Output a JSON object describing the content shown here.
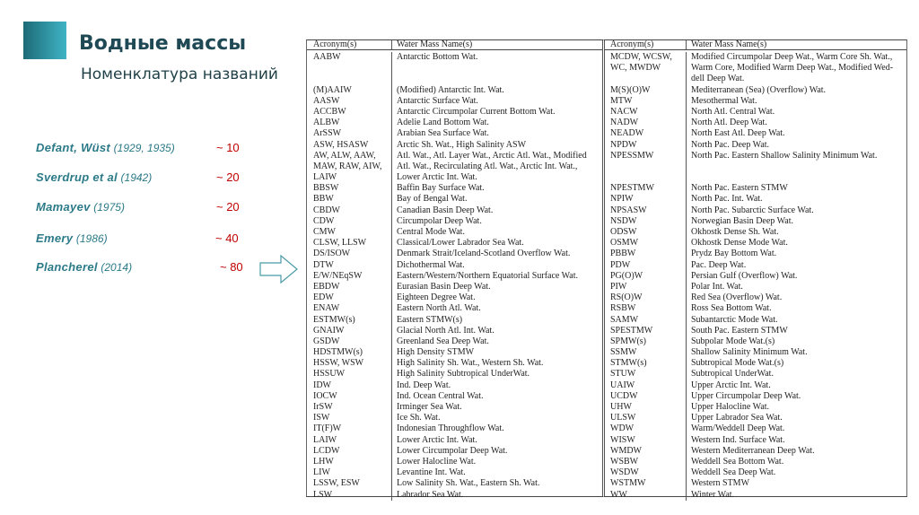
{
  "slide": {
    "title": "Водные массы",
    "subtitle": "Номенклатура названий",
    "accent_color": "#2b8a98",
    "authors": [
      {
        "name": "Defant, Wüst",
        "years": "(1929, 1935)",
        "count": "~ 10"
      },
      {
        "name": "Sverdrup et al",
        "years": "(1942)",
        "count": "~ 20"
      },
      {
        "name": "Mamayev",
        "years": "(1975)",
        "count": "~ 20"
      },
      {
        "name": "Emery",
        "years": "(1986)",
        "count": "~ 40"
      },
      {
        "name": "Plancherel",
        "years": "(2014)",
        "count": "~ 80"
      }
    ],
    "arrow_icon": "right-arrow-outline"
  },
  "table": {
    "headers": [
      "Acronym(s)",
      "Water Mass Name(s)"
    ],
    "left_rows": [
      [
        "AABW",
        "Antarctic Bottom Wat."
      ],
      [
        "",
        ""
      ],
      [
        "",
        ""
      ],
      [
        "(M)AAIW",
        "(Modified) Antarctic Int. Wat."
      ],
      [
        "AASW",
        "Antarctic Surface Wat."
      ],
      [
        "ACCBW",
        "Antarctic Circumpolar Current Bottom Wat."
      ],
      [
        "ALBW",
        "Adelie Land Bottom Wat."
      ],
      [
        "ArSSW",
        "Arabian Sea Surface Wat."
      ],
      [
        "ASW, HSASW",
        "Arctic Sh. Wat., High Salinity ASW"
      ],
      [
        "AW, ALW, AAW,",
        "Atl. Wat., Atl. Layer Wat., Arctic Atl. Wat., Modified"
      ],
      [
        "MAW, RAW, AIW,",
        "Atl. Wat., Recirculating Atl. Wat., Arctic Int. Wat.,"
      ],
      [
        "LAIW",
        "Lower Arctic Int. Wat."
      ],
      [
        "BBSW",
        "Baffin Bay Surface Wat."
      ],
      [
        "BBW",
        "Bay of Bengal Wat."
      ],
      [
        "CBDW",
        "Canadian Basin Deep Wat."
      ],
      [
        "CDW",
        "Circumpolar Deep Wat."
      ],
      [
        "CMW",
        "Central Mode Wat."
      ],
      [
        "CLSW, LLSW",
        "Classical/Lower Labrador Sea Wat."
      ],
      [
        "DS/ISOW",
        "Denmark Strait/Iceland-Scotland Overflow Wat."
      ],
      [
        "DTW",
        "Dichothermal Wat."
      ],
      [
        "E/W/NEqSW",
        "Eastern/Western/Northern Equatorial Surface Wat."
      ],
      [
        "EBDW",
        "Eurasian Basin Deep Wat."
      ],
      [
        "EDW",
        "Eighteen Degree Wat."
      ],
      [
        "ENAW",
        "Eastern North Atl. Wat."
      ],
      [
        "ESTMW(s)",
        "Eastern STMW(s)"
      ],
      [
        "GNAIW",
        "Glacial North Atl. Int. Wat."
      ],
      [
        "GSDW",
        "Greenland Sea Deep Wat."
      ],
      [
        "HDSTMW(s)",
        "High Density STMW"
      ],
      [
        "HSSW, WSW",
        "High Salinity Sh. Wat., Western Sh. Wat."
      ],
      [
        "HSSUW",
        "High Salinity Subtropical UnderWat."
      ],
      [
        "IDW",
        "Ind. Deep Wat."
      ],
      [
        "IOCW",
        "Ind. Ocean Central Wat."
      ],
      [
        "IrSW",
        "Irminger Sea Wat."
      ],
      [
        "ISW",
        "Ice Sh. Wat."
      ],
      [
        "IT(F)W",
        "Indonesian Throughflow Wat."
      ],
      [
        "LAIW",
        "Lower Arctic Int. Wat."
      ],
      [
        "LCDW",
        "Lower Circumpolar Deep Wat."
      ],
      [
        "LHW",
        "Lower Halocline Wat."
      ],
      [
        "LIW",
        "Levantine Int. Wat."
      ],
      [
        "LSSW, ESW",
        "Low Salinity Sh. Wat., Eastern Sh. Wat."
      ],
      [
        "LSW",
        "Labrador Sea Wat."
      ]
    ],
    "right_rows": [
      [
        "MCDW,    WCSW,",
        "Modified Circumpolar Deep Wat., Warm Core Sh. Wat.,"
      ],
      [
        "WC, MWDW",
        "Warm Core, Modified Warm Deep Wat., Modified Wed-"
      ],
      [
        "",
        "dell Deep Wat."
      ],
      [
        "M(S)(O)W",
        "Mediterranean (Sea) (Overflow) Wat."
      ],
      [
        "MTW",
        "Mesothermal Wat."
      ],
      [
        "NACW",
        "North Atl. Central Wat."
      ],
      [
        "NADW",
        "North Atl. Deep Wat."
      ],
      [
        "NEADW",
        "North East Atl. Deep Wat."
      ],
      [
        "NPDW",
        "North Pac. Deep Wat."
      ],
      [
        "NPESSMW",
        "North Pac. Eastern Shallow Salinity Minimum Wat."
      ],
      [
        "",
        ""
      ],
      [
        "",
        ""
      ],
      [
        "NPESTMW",
        "North Pac. Eastern STMW"
      ],
      [
        "NPIW",
        "North Pac. Int. Wat."
      ],
      [
        "NPSASW",
        "North Pac. Subarctic Surface Wat."
      ],
      [
        "NSDW",
        "Norwegian Basin Deep Wat."
      ],
      [
        "ODSW",
        "Okhostk Dense Sh. Wat."
      ],
      [
        "OSMW",
        "Okhostk Dense Mode Wat."
      ],
      [
        "PBBW",
        "Prydz Bay Bottom Wat."
      ],
      [
        "PDW",
        "Pac. Deep Wat."
      ],
      [
        "PG(O)W",
        "Persian Gulf (Overflow) Wat."
      ],
      [
        "PIW",
        "Polar Int. Wat."
      ],
      [
        "RS(O)W",
        "Red Sea (Overflow) Wat."
      ],
      [
        "RSBW",
        "Ross Sea Bottom Wat."
      ],
      [
        "SAMW",
        "Subantarctic Mode Wat."
      ],
      [
        "SPESTMW",
        "South Pac. Eastern STMW"
      ],
      [
        "SPMW(s)",
        "Subpolar Mode Wat.(s)"
      ],
      [
        "SSMW",
        "Shallow Salinity Minimum Wat."
      ],
      [
        "STMW(s)",
        "Subtropical Mode Wat.(s)"
      ],
      [
        "STUW",
        "Subtropical UnderWat."
      ],
      [
        "UAIW",
        "Upper Arctic Int. Wat."
      ],
      [
        "UCDW",
        "Upper Circumpolar Deep Wat."
      ],
      [
        "UHW",
        "Upper Halocline Wat."
      ],
      [
        "ULSW",
        "Upper Labrador Sea Wat."
      ],
      [
        "WDW",
        "Warm/Weddell Deep Wat."
      ],
      [
        "WISW",
        "Western Ind. Surface Wat."
      ],
      [
        "WMDW",
        "Western Mediterranean Deep Wat."
      ],
      [
        "WSBW",
        "Weddell Sea Bottom Wat."
      ],
      [
        "WSDW",
        "Weddell Sea Deep Wat."
      ],
      [
        "WSTMW",
        "Western STMW"
      ],
      [
        "WW",
        "Winter Wat."
      ]
    ]
  }
}
